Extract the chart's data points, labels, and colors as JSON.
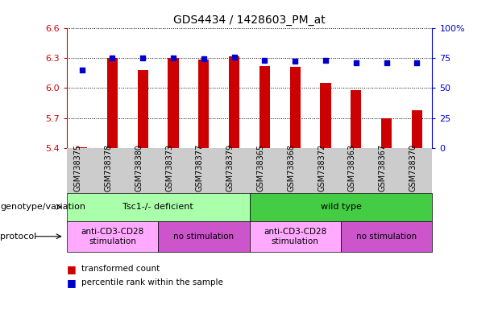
{
  "title": "GDS4434 / 1428603_PM_at",
  "samples": [
    "GSM738375",
    "GSM738378",
    "GSM738380",
    "GSM738373",
    "GSM738377",
    "GSM738379",
    "GSM738365",
    "GSM738368",
    "GSM738372",
    "GSM738363",
    "GSM738367",
    "GSM738370"
  ],
  "bar_values": [
    5.41,
    6.3,
    6.18,
    6.3,
    6.28,
    6.32,
    6.22,
    6.21,
    6.05,
    5.98,
    5.7,
    5.78
  ],
  "bar_bottom": 5.4,
  "percentile_values": [
    65,
    75,
    75,
    75,
    74,
    76,
    73,
    72,
    73,
    71,
    71,
    71
  ],
  "ylim_left": [
    5.4,
    6.6
  ],
  "yleft_ticks": [
    5.4,
    5.7,
    6.0,
    6.3,
    6.6
  ],
  "yright_ticks": [
    0,
    25,
    50,
    75,
    100
  ],
  "bar_color": "#cc0000",
  "dot_color": "#0000cc",
  "bar_width": 0.35,
  "genotype_groups": [
    {
      "label": "Tsc1-/- deficient",
      "start": 0,
      "end": 6,
      "color": "#aaffaa"
    },
    {
      "label": "wild type",
      "start": 6,
      "end": 12,
      "color": "#44cc44"
    }
  ],
  "protocol_groups": [
    {
      "label": "anti-CD3-CD28\nstimulation",
      "start": 0,
      "end": 3,
      "color": "#ffaaff"
    },
    {
      "label": "no stimulation",
      "start": 3,
      "end": 6,
      "color": "#cc55cc"
    },
    {
      "label": "anti-CD3-CD28\nstimulation",
      "start": 6,
      "end": 9,
      "color": "#ffaaff"
    },
    {
      "label": "no stimulation",
      "start": 9,
      "end": 12,
      "color": "#cc55cc"
    }
  ],
  "genotype_label": "genotype/variation",
  "protocol_label": "protocol",
  "legend_items": [
    "transformed count",
    "percentile rank within the sample"
  ],
  "tick_bg_color": "#cccccc"
}
